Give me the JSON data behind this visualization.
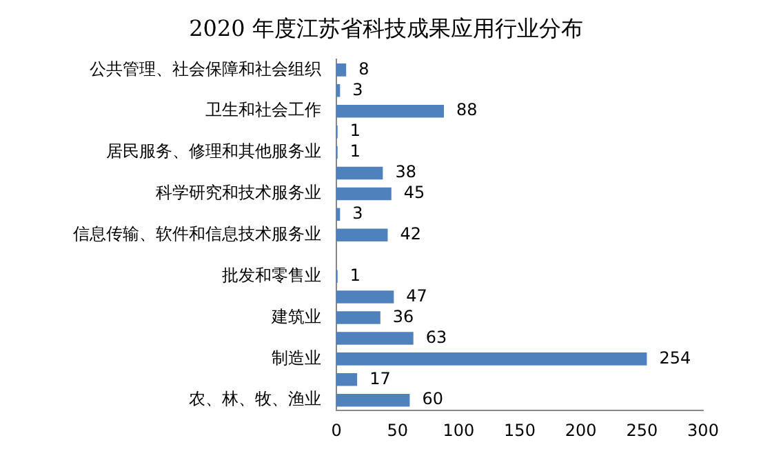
{
  "chart_data": {
    "type": "bar",
    "orientation": "horizontal",
    "title": "2020 年度江苏省科技成果应用行业分布",
    "categories": [
      "公共管理、社会保障和社会组织",
      null,
      "卫生和社会工作",
      null,
      "居民服务、修理和其他服务业",
      null,
      "科学研究和技术服务业",
      null,
      "信息传输、软件和信息技术服务业",
      null,
      "批发和零售业",
      null,
      "建筑业",
      null,
      "制造业",
      null,
      "农、林、牧、渔业"
    ],
    "values": [
      8,
      3,
      88,
      1,
      1,
      38,
      45,
      3,
      42,
      null,
      1,
      47,
      36,
      63,
      254,
      17,
      60
    ],
    "color": "#4f81bd",
    "xlim": [
      0,
      300
    ],
    "xticks": [
      0,
      50,
      100,
      150,
      200,
      250,
      300
    ],
    "grid": false,
    "legend": false,
    "data_labels": true
  }
}
